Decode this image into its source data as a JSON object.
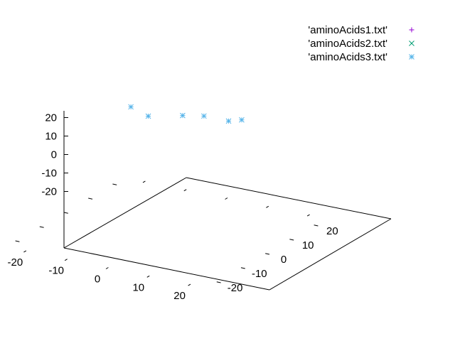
{
  "chart_data": {
    "type": "scatter",
    "projection": "3d",
    "title": "",
    "xlabel": "",
    "ylabel": "",
    "zlabel": "",
    "xlim": [
      -25,
      25
    ],
    "ylim": [
      -25,
      25
    ],
    "zlim": [
      -25,
      25
    ],
    "x_ticks": [
      "-20",
      "-10",
      "0",
      "10",
      "20"
    ],
    "y_ticks": [
      "-20",
      "-10",
      "0",
      "10",
      "20"
    ],
    "z_ticks": [
      "20",
      "10",
      "0",
      "-10",
      "-20"
    ],
    "grid": false,
    "legend_position": "top-right",
    "series": [
      {
        "name": "'aminoAcids1.txt'",
        "marker": "plus",
        "color": "#9400d3",
        "points": []
      },
      {
        "name": "'aminoAcids2.txt'",
        "marker": "cross",
        "color": "#009e73",
        "points": []
      },
      {
        "name": "'aminoAcids3.txt'",
        "marker": "asterisk",
        "color": "#56b4e9",
        "points": [
          {
            "x": -17,
            "y": 14,
            "z": 25
          },
          {
            "x": -11,
            "y": 11,
            "z": 25
          },
          {
            "x": -5,
            "y": 15,
            "z": 25
          },
          {
            "x": -1,
            "y": 17,
            "z": 25
          },
          {
            "x": 5,
            "y": 17,
            "z": 25
          },
          {
            "x": 7,
            "y": 19,
            "z": 25
          }
        ]
      }
    ]
  }
}
